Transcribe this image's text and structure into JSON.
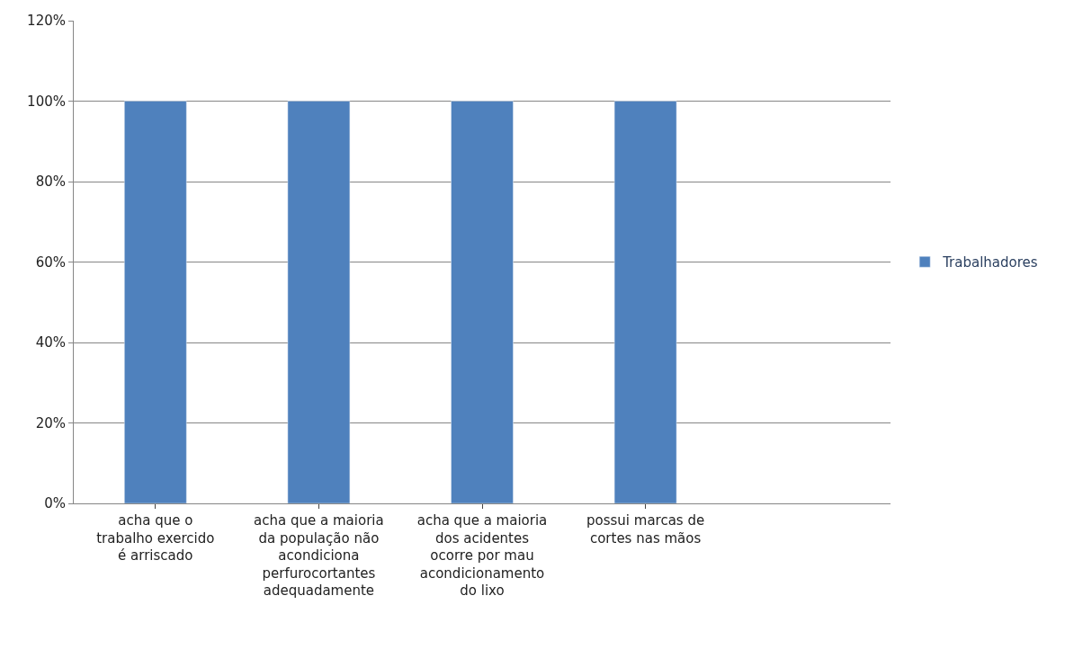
{
  "chart_data": {
    "type": "bar",
    "categories": [
      "acha que o trabalho exercido é arriscado",
      "acha que a maioria da população não acondiciona perfurocortantes adequadamente",
      "acha que a maioria dos acidentes ocorre por mau acondicionamento do lixo",
      "possui marcas de cortes nas mãos",
      null
    ],
    "series": [
      {
        "name": "Trabalhadores",
        "color": "#4f81bd",
        "values": [
          100,
          100,
          100,
          100,
          null
        ]
      }
    ],
    "ylim": [
      0,
      120
    ],
    "yticks": [
      {
        "value": 0,
        "label": "0%"
      },
      {
        "value": 20,
        "label": "20%"
      },
      {
        "value": 40,
        "label": "40%"
      },
      {
        "value": 60,
        "label": "60%"
      },
      {
        "value": 80,
        "label": "80%"
      },
      {
        "value": 100,
        "label": "100%"
      },
      {
        "value": 120,
        "label": "120%"
      }
    ],
    "grid": "y",
    "legend": "right"
  }
}
